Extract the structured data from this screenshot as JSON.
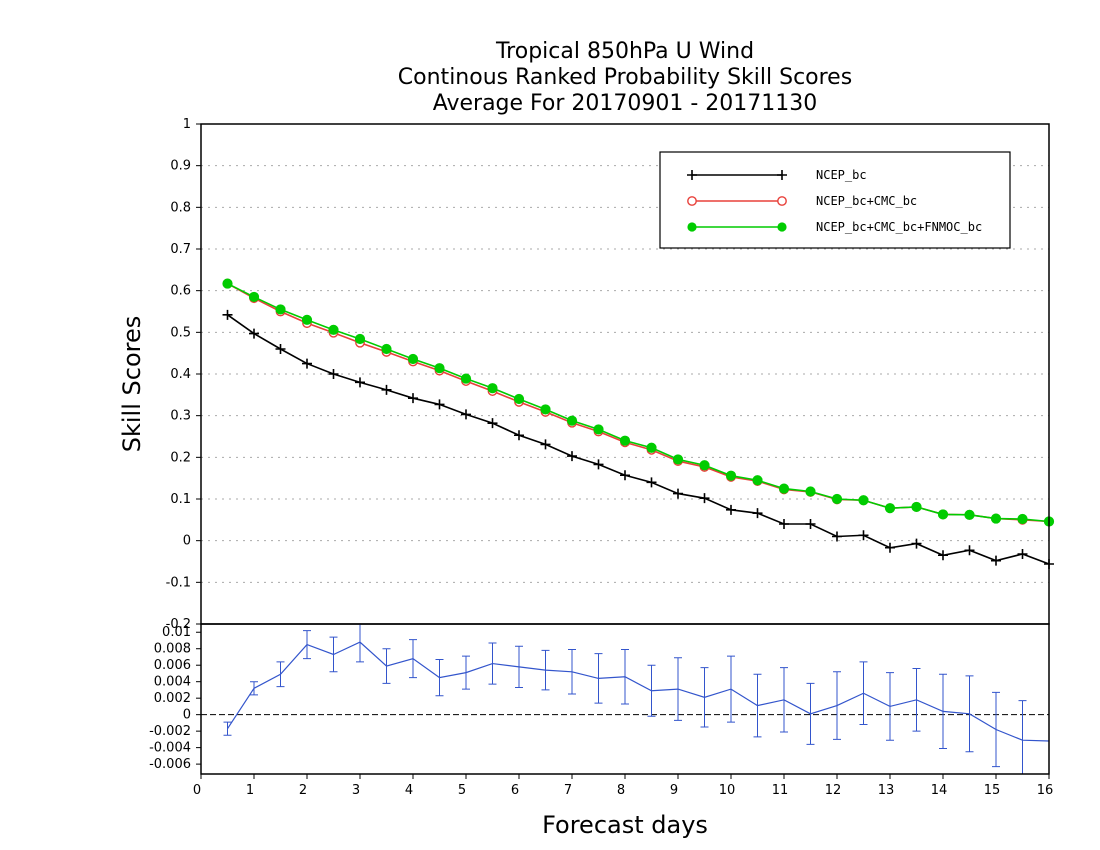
{
  "chart_data": [
    {
      "type": "line",
      "title": [
        "Tropical 850hPa U Wind",
        "Continous Ranked Probability Skill Scores",
        "Average For 20170901 - 20171130"
      ],
      "ylabel": "Skill Scores",
      "xlim": [
        0,
        16
      ],
      "ylim": [
        -0.2,
        1
      ],
      "y_ticks": [
        "-0.2",
        "-0.1",
        "0",
        "0.1",
        "0.2",
        "0.3",
        "0.4",
        "0.5",
        "0.6",
        "0.7",
        "0.8",
        "0.9",
        "1"
      ],
      "grid": true,
      "legend_position": "top-right",
      "x": [
        0.5,
        1,
        1.5,
        2,
        2.5,
        3,
        3.5,
        4,
        4.5,
        5,
        5.5,
        6,
        6.5,
        7,
        7.5,
        8,
        8.5,
        9,
        9.5,
        10,
        10.5,
        11,
        11.5,
        12,
        12.5,
        13,
        13.5,
        14,
        14.5,
        15,
        15.5,
        16
      ],
      "series": [
        {
          "name": "NCEP_bc",
          "color": "#000000",
          "marker": "plus",
          "values": [
            0.542,
            0.497,
            0.46,
            0.425,
            0.4,
            0.38,
            0.362,
            0.342,
            0.327,
            0.303,
            0.282,
            0.253,
            0.231,
            0.203,
            0.183,
            0.157,
            0.14,
            0.113,
            0.102,
            0.074,
            0.066,
            0.04,
            0.04,
            0.01,
            0.013,
            -0.017,
            -0.007,
            -0.035,
            -0.023,
            -0.048,
            -0.032,
            -0.056
          ]
        },
        {
          "name": "NCEP_bc+CMC_bc",
          "color": "#e8403a",
          "marker": "open-circle",
          "values": [
            0.617,
            0.582,
            0.55,
            0.522,
            0.499,
            0.475,
            0.453,
            0.43,
            0.408,
            0.383,
            0.359,
            0.333,
            0.309,
            0.283,
            0.262,
            0.236,
            0.218,
            0.191,
            0.177,
            0.153,
            0.143,
            0.123,
            0.117,
            0.099,
            0.097,
            0.078,
            0.081,
            0.063,
            0.062,
            0.053,
            0.05,
            0.046
          ]
        },
        {
          "name": "NCEP_bc+CMC_bc+FNMOC_bc",
          "color": "#00cc00",
          "marker": "filled-circle",
          "values": [
            0.617,
            0.585,
            0.555,
            0.53,
            0.506,
            0.484,
            0.46,
            0.436,
            0.414,
            0.389,
            0.366,
            0.34,
            0.315,
            0.288,
            0.267,
            0.24,
            0.223,
            0.195,
            0.181,
            0.156,
            0.145,
            0.125,
            0.118,
            0.1,
            0.097,
            0.078,
            0.081,
            0.063,
            0.062,
            0.053,
            0.052,
            0.046
          ]
        }
      ]
    },
    {
      "type": "line",
      "xlabel": "Forecast days",
      "xlim": [
        0,
        16
      ],
      "ylim": [
        -0.0072,
        0.011
      ],
      "x_ticks": [
        "0",
        "1",
        "2",
        "3",
        "4",
        "5",
        "6",
        "7",
        "8",
        "9",
        "10",
        "11",
        "12",
        "13",
        "14",
        "15",
        "16"
      ],
      "y_ticks": [
        "-0.006",
        "-0.004",
        "-0.002",
        "0",
        "0.002",
        "0.004",
        "0.006",
        "0.008",
        "0.01"
      ],
      "reference_line": 0,
      "x": [
        0.5,
        1,
        1.5,
        2,
        2.5,
        3,
        3.5,
        4,
        4.5,
        5,
        5.5,
        6,
        6.5,
        7,
        7.5,
        8,
        8.5,
        9,
        9.5,
        10,
        10.5,
        11,
        11.5,
        12,
        12.5,
        13,
        13.5,
        14,
        14.5,
        15,
        15.5,
        16
      ],
      "series": [
        {
          "color": "#3355cc",
          "values": [
            -0.0017,
            0.0032,
            0.0049,
            0.0085,
            0.0073,
            0.0088,
            0.0059,
            0.0068,
            0.0045,
            0.0051,
            0.0062,
            0.0058,
            0.0054,
            0.0052,
            0.0044,
            0.0046,
            0.0029,
            0.0031,
            0.0021,
            0.0031,
            0.0011,
            0.0018,
            0.0001,
            0.0011,
            0.0026,
            0.001,
            0.0018,
            0.0004,
            0.0001,
            -0.0018,
            -0.0031,
            -0.0032
          ],
          "error": [
            0.0008,
            0.0008,
            0.0015,
            0.0017,
            0.0021,
            0.0024,
            0.0021,
            0.0023,
            0.0022,
            0.002,
            0.0025,
            0.0025,
            0.0024,
            0.0027,
            0.003,
            0.0033,
            0.0031,
            0.0038,
            0.0036,
            0.004,
            0.0038,
            0.0039,
            0.0037,
            0.0041,
            0.0038,
            0.0041,
            0.0038,
            0.0045,
            0.0046,
            0.0045,
            0.0048,
            0
          ]
        }
      ]
    }
  ]
}
